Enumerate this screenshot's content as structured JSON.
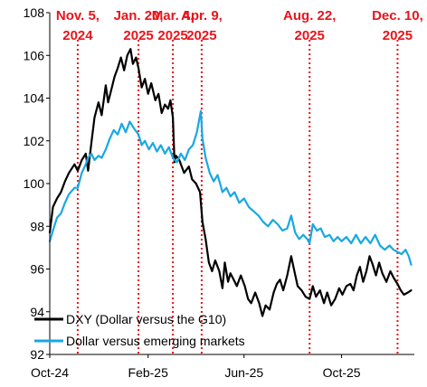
{
  "chart_data": {
    "type": "line",
    "xlabel": "",
    "ylabel": "",
    "ylim": [
      92,
      108
    ],
    "yticks": [
      92,
      94,
      96,
      98,
      100,
      102,
      104,
      106,
      108
    ],
    "xlim": [
      "2024-10-01",
      "2025-12-31"
    ],
    "xticks": [
      {
        "date": "2024-10-01",
        "label": "Oct-24"
      },
      {
        "date": "2025-02-01",
        "label": "Feb-25"
      },
      {
        "date": "2025-06-01",
        "label": "Jun-25"
      },
      {
        "date": "2025-10-01",
        "label": "Oct-25"
      }
    ],
    "grid": false,
    "legend": "bottom-left",
    "events": [
      {
        "date": "2024-11-05",
        "line1": "Nov. 5,",
        "line2": "2024"
      },
      {
        "date": "2025-01-20",
        "line1": "Jan. 20,",
        "line2": "2025"
      },
      {
        "date": "2025-03-04",
        "line1": "Mar. 4,",
        "line2": "2025"
      },
      {
        "date": "2025-04-09",
        "line1": "Apr. 9,",
        "line2": "2025"
      },
      {
        "date": "2025-08-22",
        "line1": "Aug. 22,",
        "line2": "2025"
      },
      {
        "date": "2025-12-10",
        "line1": "Dec. 10,",
        "line2": "2025"
      }
    ],
    "event_color": "#e8141b",
    "series": [
      {
        "name": "DXY (Dollar versus the G10)",
        "color": "#000000",
        "points": [
          [
            "2024-10-01",
            97.7
          ],
          [
            "2024-10-05",
            98.9
          ],
          [
            "2024-10-10",
            99.3
          ],
          [
            "2024-10-15",
            99.6
          ],
          [
            "2024-10-20",
            100.1
          ],
          [
            "2024-10-25",
            100.5
          ],
          [
            "2024-11-01",
            100.9
          ],
          [
            "2024-11-05",
            100.6
          ],
          [
            "2024-11-10",
            101.1
          ],
          [
            "2024-11-15",
            101.4
          ],
          [
            "2024-11-18",
            100.6
          ],
          [
            "2024-11-22",
            101.9
          ],
          [
            "2024-11-26",
            103.1
          ],
          [
            "2024-12-01",
            103.8
          ],
          [
            "2024-12-05",
            103.2
          ],
          [
            "2024-12-10",
            104.6
          ],
          [
            "2024-12-13",
            103.8
          ],
          [
            "2024-12-17",
            104.4
          ],
          [
            "2024-12-21",
            105.0
          ],
          [
            "2024-12-25",
            105.4
          ],
          [
            "2024-12-29",
            105.9
          ],
          [
            "2025-01-02",
            105.3
          ],
          [
            "2025-01-06",
            106.0
          ],
          [
            "2025-01-10",
            106.3
          ],
          [
            "2025-01-13",
            105.6
          ],
          [
            "2025-01-17",
            105.9
          ],
          [
            "2025-01-20",
            105.4
          ],
          [
            "2025-01-24",
            104.5
          ],
          [
            "2025-01-28",
            104.9
          ],
          [
            "2025-02-01",
            104.2
          ],
          [
            "2025-02-05",
            104.7
          ],
          [
            "2025-02-10",
            103.9
          ],
          [
            "2025-02-14",
            104.2
          ],
          [
            "2025-02-18",
            103.3
          ],
          [
            "2025-02-22",
            103.7
          ],
          [
            "2025-02-26",
            103.5
          ],
          [
            "2025-03-01",
            103.9
          ],
          [
            "2025-03-04",
            103.1
          ],
          [
            "2025-03-06",
            101.0
          ],
          [
            "2025-03-08",
            101.3
          ],
          [
            "2025-03-12",
            101.1
          ],
          [
            "2025-03-18",
            100.5
          ],
          [
            "2025-03-24",
            100.8
          ],
          [
            "2025-03-28",
            100.2
          ],
          [
            "2025-04-02",
            100.0
          ],
          [
            "2025-04-07",
            99.6
          ],
          [
            "2025-04-10",
            98.2
          ],
          [
            "2025-04-14",
            97.4
          ],
          [
            "2025-04-18",
            96.3
          ],
          [
            "2025-04-22",
            95.9
          ],
          [
            "2025-04-26",
            96.4
          ],
          [
            "2025-05-01",
            95.9
          ],
          [
            "2025-05-05",
            95.1
          ],
          [
            "2025-05-08",
            96.3
          ],
          [
            "2025-05-12",
            95.4
          ],
          [
            "2025-05-15",
            95.8
          ],
          [
            "2025-05-19",
            95.5
          ],
          [
            "2025-05-23",
            95.2
          ],
          [
            "2025-05-28",
            95.7
          ],
          [
            "2025-06-02",
            95.2
          ],
          [
            "2025-06-06",
            94.6
          ],
          [
            "2025-06-10",
            94.4
          ],
          [
            "2025-06-15",
            94.9
          ],
          [
            "2025-06-20",
            94.4
          ],
          [
            "2025-06-24",
            93.8
          ],
          [
            "2025-06-28",
            94.3
          ],
          [
            "2025-07-03",
            94.1
          ],
          [
            "2025-07-08",
            94.9
          ],
          [
            "2025-07-12",
            95.3
          ],
          [
            "2025-07-16",
            95.5
          ],
          [
            "2025-07-20",
            95.0
          ],
          [
            "2025-07-25",
            95.7
          ],
          [
            "2025-07-30",
            96.6
          ],
          [
            "2025-08-03",
            95.9
          ],
          [
            "2025-08-07",
            95.2
          ],
          [
            "2025-08-12",
            95.0
          ],
          [
            "2025-08-17",
            94.7
          ],
          [
            "2025-08-22",
            94.6
          ],
          [
            "2025-08-26",
            95.2
          ],
          [
            "2025-08-30",
            94.7
          ],
          [
            "2025-09-04",
            95.0
          ],
          [
            "2025-09-09",
            94.4
          ],
          [
            "2025-09-13",
            94.9
          ],
          [
            "2025-09-18",
            94.3
          ],
          [
            "2025-09-23",
            94.6
          ],
          [
            "2025-09-28",
            95.1
          ],
          [
            "2025-10-02",
            94.8
          ],
          [
            "2025-10-07",
            95.2
          ],
          [
            "2025-10-12",
            95.3
          ],
          [
            "2025-10-16",
            95.0
          ],
          [
            "2025-10-20",
            95.7
          ],
          [
            "2025-10-24",
            96.1
          ],
          [
            "2025-10-28",
            95.4
          ],
          [
            "2025-11-01",
            95.9
          ],
          [
            "2025-11-05",
            96.6
          ],
          [
            "2025-11-09",
            96.2
          ],
          [
            "2025-11-13",
            95.7
          ],
          [
            "2025-11-17",
            96.3
          ],
          [
            "2025-11-21",
            95.8
          ],
          [
            "2025-11-26",
            95.4
          ],
          [
            "2025-12-01",
            95.9
          ],
          [
            "2025-12-05",
            95.6
          ],
          [
            "2025-12-10",
            95.3
          ],
          [
            "2025-12-14",
            95.0
          ],
          [
            "2025-12-18",
            94.8
          ],
          [
            "2025-12-23",
            94.9
          ],
          [
            "2025-12-27",
            95.0
          ]
        ]
      },
      {
        "name": "Dollar versus emerging markets",
        "color": "#17a8e3",
        "points": [
          [
            "2024-10-01",
            97.3
          ],
          [
            "2024-10-05",
            97.8
          ],
          [
            "2024-10-10",
            98.4
          ],
          [
            "2024-10-15",
            98.6
          ],
          [
            "2024-10-20",
            99.1
          ],
          [
            "2024-10-25",
            99.5
          ],
          [
            "2024-11-01",
            99.8
          ],
          [
            "2024-11-05",
            99.8
          ],
          [
            "2024-11-10",
            100.5
          ],
          [
            "2024-11-15",
            100.9
          ],
          [
            "2024-11-18",
            101.2
          ],
          [
            "2024-11-22",
            101.4
          ],
          [
            "2024-11-26",
            101.1
          ],
          [
            "2024-12-01",
            101.3
          ],
          [
            "2024-12-05",
            101.2
          ],
          [
            "2024-12-10",
            101.6
          ],
          [
            "2024-12-15",
            102.1
          ],
          [
            "2024-12-20",
            102.5
          ],
          [
            "2024-12-25",
            102.3
          ],
          [
            "2024-12-30",
            102.8
          ],
          [
            "2025-01-04",
            102.4
          ],
          [
            "2025-01-09",
            102.9
          ],
          [
            "2025-01-14",
            102.6
          ],
          [
            "2025-01-20",
            102.3
          ],
          [
            "2025-01-24",
            101.8
          ],
          [
            "2025-01-28",
            102.0
          ],
          [
            "2025-02-02",
            101.6
          ],
          [
            "2025-02-07",
            101.9
          ],
          [
            "2025-02-12",
            101.5
          ],
          [
            "2025-02-17",
            101.8
          ],
          [
            "2025-02-22",
            101.4
          ],
          [
            "2025-02-27",
            101.7
          ],
          [
            "2025-03-04",
            101.2
          ],
          [
            "2025-03-09",
            101.0
          ],
          [
            "2025-03-14",
            101.4
          ],
          [
            "2025-03-19",
            101.1
          ],
          [
            "2025-03-24",
            101.6
          ],
          [
            "2025-03-29",
            101.8
          ],
          [
            "2025-04-03",
            102.4
          ],
          [
            "2025-04-08",
            103.4
          ],
          [
            "2025-04-10",
            102.1
          ],
          [
            "2025-04-14",
            101.2
          ],
          [
            "2025-04-19",
            100.5
          ],
          [
            "2025-04-24",
            100.1
          ],
          [
            "2025-04-29",
            100.4
          ],
          [
            "2025-05-05",
            99.6
          ],
          [
            "2025-05-10",
            99.8
          ],
          [
            "2025-05-15",
            99.4
          ],
          [
            "2025-05-20",
            99.6
          ],
          [
            "2025-05-26",
            99.1
          ],
          [
            "2025-06-01",
            99.3
          ],
          [
            "2025-06-07",
            98.9
          ],
          [
            "2025-06-13",
            98.7
          ],
          [
            "2025-06-19",
            98.5
          ],
          [
            "2025-06-25",
            98.2
          ],
          [
            "2025-07-01",
            98.0
          ],
          [
            "2025-07-07",
            98.3
          ],
          [
            "2025-07-13",
            98.1
          ],
          [
            "2025-07-19",
            97.8
          ],
          [
            "2025-07-25",
            97.9
          ],
          [
            "2025-07-30",
            98.5
          ],
          [
            "2025-08-04",
            97.7
          ],
          [
            "2025-08-09",
            97.4
          ],
          [
            "2025-08-14",
            97.6
          ],
          [
            "2025-08-19",
            97.4
          ],
          [
            "2025-08-22",
            97.2
          ],
          [
            "2025-08-26",
            98.1
          ],
          [
            "2025-08-31",
            97.8
          ],
          [
            "2025-09-05",
            97.9
          ],
          [
            "2025-09-10",
            97.5
          ],
          [
            "2025-09-16",
            97.6
          ],
          [
            "2025-09-21",
            97.3
          ],
          [
            "2025-09-26",
            97.5
          ],
          [
            "2025-10-01",
            97.3
          ],
          [
            "2025-10-07",
            97.5
          ],
          [
            "2025-10-13",
            97.2
          ],
          [
            "2025-10-19",
            97.6
          ],
          [
            "2025-10-25",
            97.2
          ],
          [
            "2025-10-31",
            97.5
          ],
          [
            "2025-11-06",
            97.2
          ],
          [
            "2025-11-12",
            97.6
          ],
          [
            "2025-11-18",
            97.1
          ],
          [
            "2025-11-24",
            96.9
          ],
          [
            "2025-11-30",
            97.1
          ],
          [
            "2025-12-05",
            96.9
          ],
          [
            "2025-12-10",
            96.8
          ],
          [
            "2025-12-15",
            96.7
          ],
          [
            "2025-12-20",
            96.9
          ],
          [
            "2025-12-24",
            96.6
          ],
          [
            "2025-12-27",
            96.2
          ]
        ]
      }
    ]
  }
}
